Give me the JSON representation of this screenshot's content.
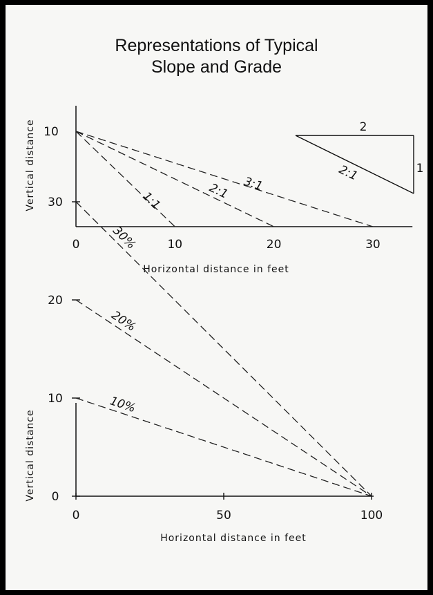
{
  "title": {
    "line1": "Representations of Typical",
    "line2": "Slope and Grade"
  },
  "chart_data": [
    {
      "type": "line",
      "xlabel": "Horizontal distance in feet",
      "ylabel": "Vertical distance",
      "x_ticks": [
        "0",
        "10",
        "20",
        "30"
      ],
      "y_ticks": [
        "10"
      ],
      "xlim": [
        0,
        34
      ],
      "ylim": [
        0,
        10
      ],
      "series": [
        {
          "name": "1:1",
          "x": [
            0,
            10
          ],
          "y": [
            10,
            0
          ]
        },
        {
          "name": "2:1",
          "x": [
            0,
            20
          ],
          "y": [
            10,
            0
          ]
        },
        {
          "name": "3:1",
          "x": [
            0,
            30
          ],
          "y": [
            10,
            0
          ]
        }
      ],
      "inset_triangle": {
        "horizontal_label": "2",
        "vertical_label": "1",
        "hypotenuse_label": "2:1"
      }
    },
    {
      "type": "line",
      "xlabel": "Horizontal distance in feet",
      "ylabel": "Vertical distance",
      "x_ticks": [
        "0",
        "50",
        "100"
      ],
      "y_ticks": [
        "0",
        "10",
        "20",
        "30"
      ],
      "xlim": [
        0,
        100
      ],
      "ylim": [
        0,
        30
      ],
      "series": [
        {
          "name": "30%",
          "x": [
            0,
            100
          ],
          "y": [
            30,
            0
          ]
        },
        {
          "name": "20%",
          "x": [
            0,
            100
          ],
          "y": [
            20,
            0
          ]
        },
        {
          "name": "10%",
          "x": [
            0,
            100
          ],
          "y": [
            10,
            0
          ]
        }
      ]
    }
  ]
}
